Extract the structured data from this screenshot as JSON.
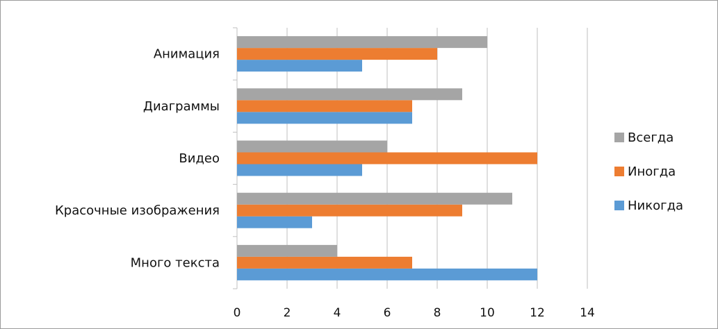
{
  "chart_data": {
    "type": "bar",
    "orientation": "horizontal",
    "categories": [
      "Много текста",
      "Красочные изображения",
      "Видео",
      "Диаграммы",
      "Анимация"
    ],
    "series": [
      {
        "name": "Никогда",
        "color": "#5b9bd5",
        "values": [
          12,
          3,
          5,
          7,
          5
        ]
      },
      {
        "name": "Иногда",
        "color": "#ed7d31",
        "values": [
          7,
          9,
          12,
          7,
          8
        ]
      },
      {
        "name": "Всегда",
        "color": "#a5a5a5",
        "values": [
          4,
          11,
          6,
          9,
          10
        ]
      }
    ],
    "xlim": [
      0,
      14
    ],
    "xticks": [
      0,
      2,
      4,
      6,
      8,
      10,
      12,
      14
    ],
    "grid": "vertical",
    "legend_position": "right",
    "title": "",
    "xlabel": "",
    "ylabel": ""
  }
}
